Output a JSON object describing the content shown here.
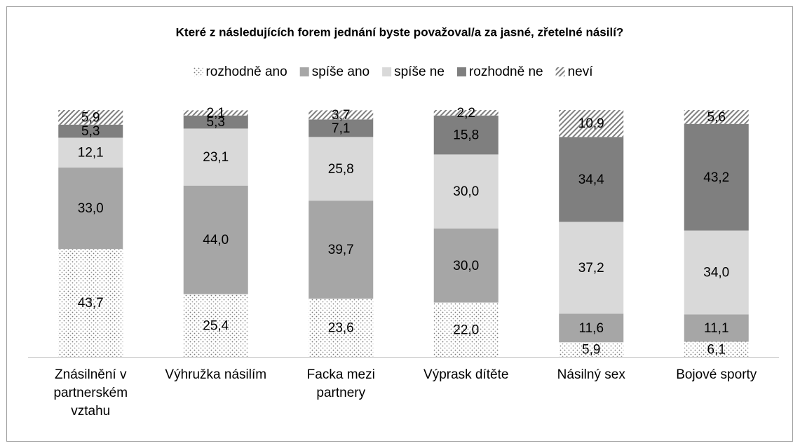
{
  "chart_data": {
    "type": "stacked_bar",
    "title": "Které z následujících forem jednání byste považoval/a za jasné, zřetelné násilí?",
    "categories": [
      "Znásilnění v partnerském vztahu",
      "Výhružka násilím",
      "Facka mezi partnery",
      "Výprask dítěte",
      "Násilný sex",
      "Bojové sporty"
    ],
    "series": [
      {
        "name": "rozhodně ano",
        "color": "#a6a6a6",
        "pattern": "dots",
        "values": [
          43.7,
          25.4,
          23.6,
          22.0,
          5.9,
          6.1
        ],
        "value_labels": [
          "43,7",
          "25,4",
          "23,6",
          "22,0",
          "5,9",
          "6,1"
        ]
      },
      {
        "name": "spíše ano",
        "color": "#a6a6a6",
        "values": [
          33.0,
          44.0,
          39.7,
          30.0,
          11.6,
          11.1
        ],
        "value_labels": [
          "33,0",
          "44,0",
          "39,7",
          "30,0",
          "11,6",
          "11,1"
        ]
      },
      {
        "name": "spíše ne",
        "color": "#d9d9d9",
        "values": [
          12.1,
          23.1,
          25.8,
          30.0,
          37.2,
          34.0
        ],
        "value_labels": [
          "12,1",
          "23,1",
          "25,8",
          "30,0",
          "37,2",
          "34,0"
        ]
      },
      {
        "name": "rozhodně ne",
        "color": "#7f7f7f",
        "values": [
          5.3,
          5.3,
          7.1,
          15.8,
          34.4,
          43.2
        ],
        "value_labels": [
          "5,3",
          "5,3",
          "7,1",
          "15,8",
          "34,4",
          "43,2"
        ]
      },
      {
        "name": "neví",
        "color": "#808080",
        "pattern": "hatch",
        "values": [
          5.9,
          2.1,
          3.7,
          2.2,
          10.9,
          5.6
        ],
        "value_labels": [
          "5,9",
          "2,1",
          "3,7",
          "2,2",
          "10,9",
          "5,6"
        ]
      }
    ],
    "legend": "top"
  }
}
